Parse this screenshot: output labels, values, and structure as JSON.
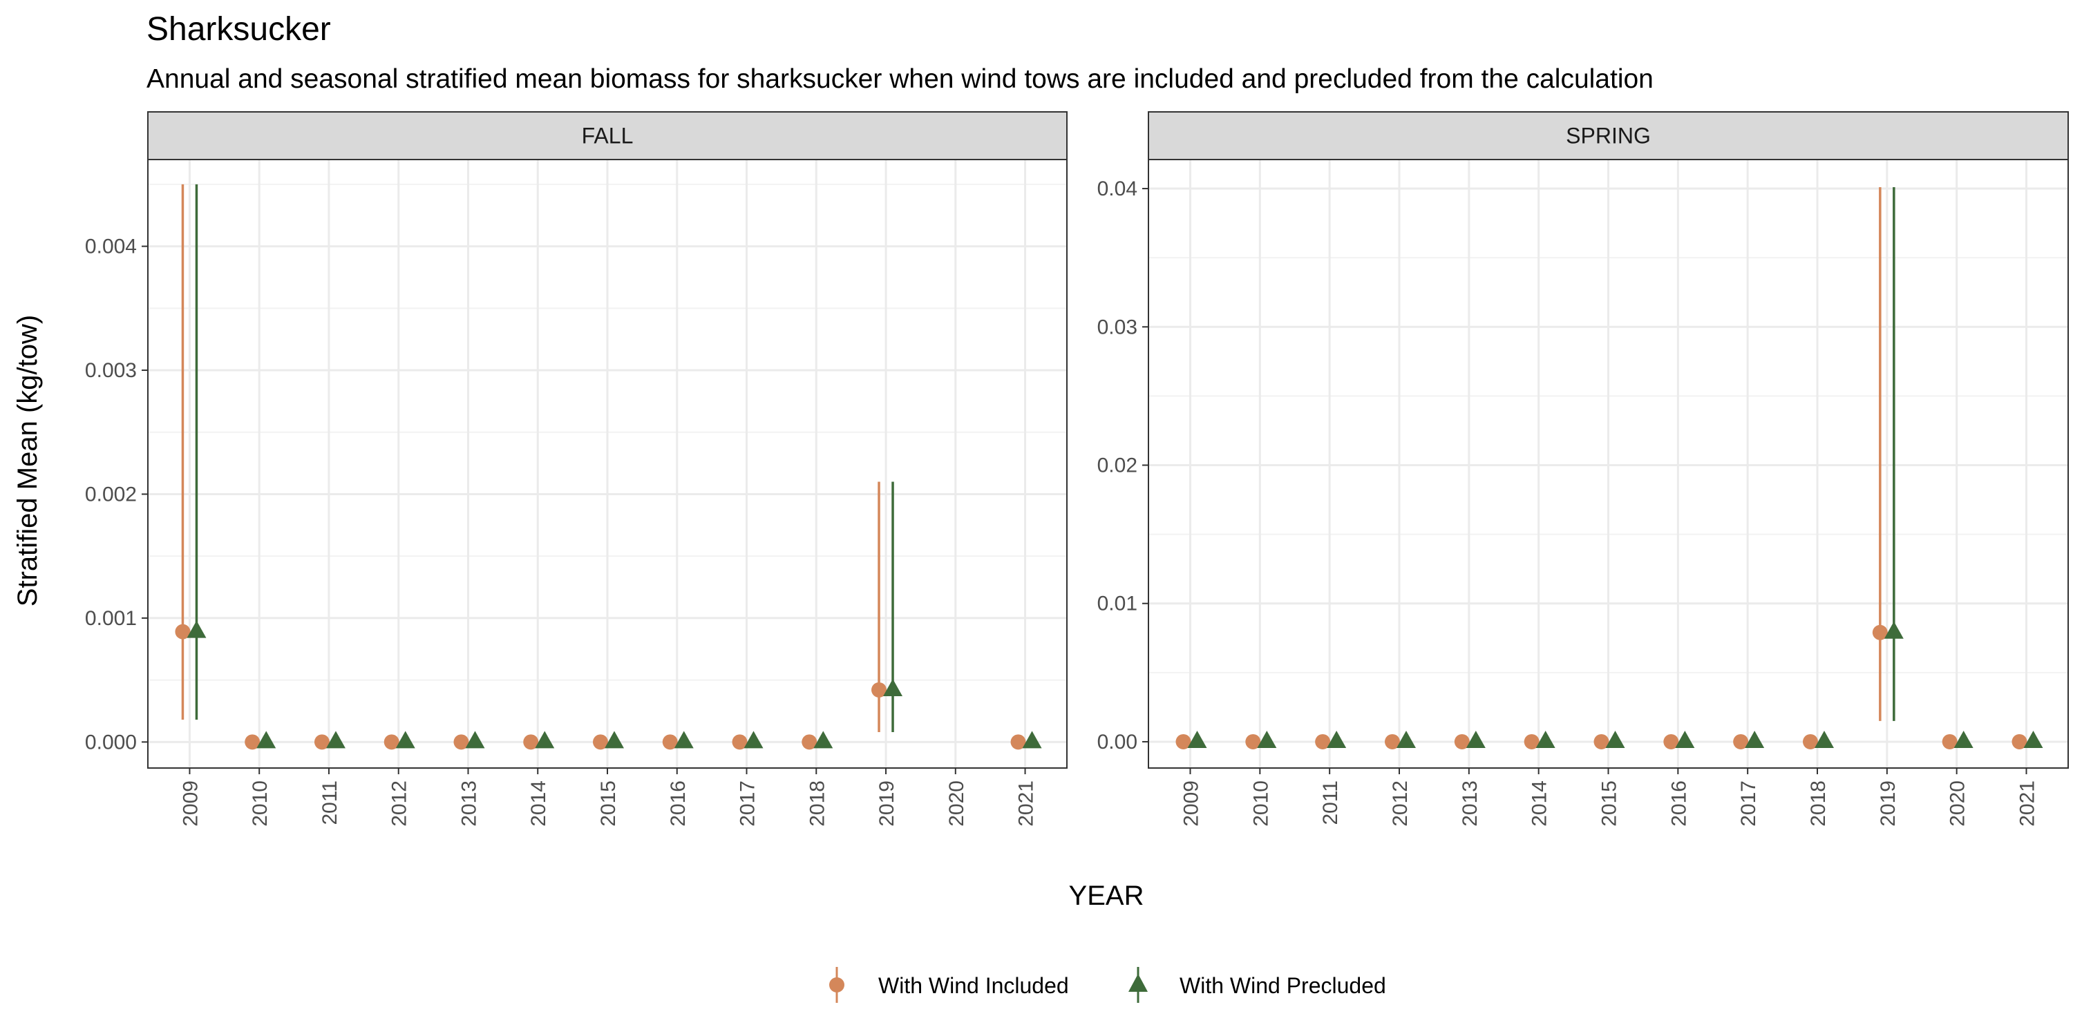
{
  "chart_data": {
    "type": "scatter",
    "title": "Sharksucker",
    "subtitle": "Annual and seasonal stratified mean biomass for sharksucker when wind tows are included and precluded from the calculation",
    "xlabel": "YEAR",
    "ylabel": "Stratified Mean (kg/tow)",
    "grid": true,
    "legend_position": "bottom",
    "series_styles": [
      {
        "key": "included",
        "name": "With Wind Included",
        "color": "#D4875A",
        "shape": "circle"
      },
      {
        "key": "precluded",
        "name": "With Wind Precluded",
        "color": "#3E6B3A",
        "shape": "triangle"
      }
    ],
    "panels": [
      {
        "label": "FALL",
        "years": [
          "2009",
          "2010",
          "2011",
          "2012",
          "2013",
          "2014",
          "2015",
          "2016",
          "2017",
          "2018",
          "2019",
          "2020",
          "2021"
        ],
        "ylim": [
          -0.00021,
          0.0047
        ],
        "yticks": [
          0,
          0.001,
          0.002,
          0.003,
          0.004
        ],
        "ytick_labels": [
          "0.000",
          "0.001",
          "0.002",
          "0.003",
          "0.004"
        ],
        "series": [
          {
            "key": "included",
            "name": "With Wind Included",
            "points": [
              {
                "year": "2009",
                "y": 0.00089,
                "lo": 0.00018,
                "hi": 0.0045
              },
              {
                "year": "2010",
                "y": 0
              },
              {
                "year": "2011",
                "y": 0
              },
              {
                "year": "2012",
                "y": 0
              },
              {
                "year": "2013",
                "y": 0
              },
              {
                "year": "2014",
                "y": 0
              },
              {
                "year": "2015",
                "y": 0
              },
              {
                "year": "2016",
                "y": 0
              },
              {
                "year": "2017",
                "y": 0
              },
              {
                "year": "2018",
                "y": 0
              },
              {
                "year": "2019",
                "y": 0.00042,
                "lo": 8e-05,
                "hi": 0.0021
              },
              {
                "year": "2021",
                "y": 0
              }
            ]
          },
          {
            "key": "precluded",
            "name": "With Wind Precluded",
            "points": [
              {
                "year": "2009",
                "y": 0.00089,
                "lo": 0.00018,
                "hi": 0.0045
              },
              {
                "year": "2010",
                "y": 0
              },
              {
                "year": "2011",
                "y": 0
              },
              {
                "year": "2012",
                "y": 0
              },
              {
                "year": "2013",
                "y": 0
              },
              {
                "year": "2014",
                "y": 0
              },
              {
                "year": "2015",
                "y": 0
              },
              {
                "year": "2016",
                "y": 0
              },
              {
                "year": "2017",
                "y": 0
              },
              {
                "year": "2018",
                "y": 0
              },
              {
                "year": "2019",
                "y": 0.00042,
                "lo": 8e-05,
                "hi": 0.0021
              },
              {
                "year": "2021",
                "y": 0
              }
            ]
          }
        ]
      },
      {
        "label": "SPRING",
        "years": [
          "2009",
          "2010",
          "2011",
          "2012",
          "2013",
          "2014",
          "2015",
          "2016",
          "2017",
          "2018",
          "2019",
          "2020",
          "2021"
        ],
        "ylim": [
          -0.0019,
          0.0421
        ],
        "yticks": [
          0,
          0.01,
          0.02,
          0.03,
          0.04
        ],
        "ytick_labels": [
          "0.00",
          "0.01",
          "0.02",
          "0.03",
          "0.04"
        ],
        "series": [
          {
            "key": "included",
            "name": "With Wind Included",
            "points": [
              {
                "year": "2009",
                "y": 0
              },
              {
                "year": "2010",
                "y": 0
              },
              {
                "year": "2011",
                "y": 0
              },
              {
                "year": "2012",
                "y": 0
              },
              {
                "year": "2013",
                "y": 0
              },
              {
                "year": "2014",
                "y": 0
              },
              {
                "year": "2015",
                "y": 0
              },
              {
                "year": "2016",
                "y": 0
              },
              {
                "year": "2017",
                "y": 0
              },
              {
                "year": "2018",
                "y": 0
              },
              {
                "year": "2019",
                "y": 0.0079,
                "lo": 0.0015,
                "hi": 0.0401
              },
              {
                "year": "2020",
                "y": 0
              },
              {
                "year": "2021",
                "y": 0
              }
            ]
          },
          {
            "key": "precluded",
            "name": "With Wind Precluded",
            "points": [
              {
                "year": "2009",
                "y": 0
              },
              {
                "year": "2010",
                "y": 0
              },
              {
                "year": "2011",
                "y": 0
              },
              {
                "year": "2012",
                "y": 0
              },
              {
                "year": "2013",
                "y": 0
              },
              {
                "year": "2014",
                "y": 0
              },
              {
                "year": "2015",
                "y": 0
              },
              {
                "year": "2016",
                "y": 0
              },
              {
                "year": "2017",
                "y": 0
              },
              {
                "year": "2018",
                "y": 0
              },
              {
                "year": "2019",
                "y": 0.0079,
                "lo": 0.0015,
                "hi": 0.0401
              },
              {
                "year": "2020",
                "y": 0
              },
              {
                "year": "2021",
                "y": 0
              }
            ]
          }
        ]
      }
    ]
  }
}
